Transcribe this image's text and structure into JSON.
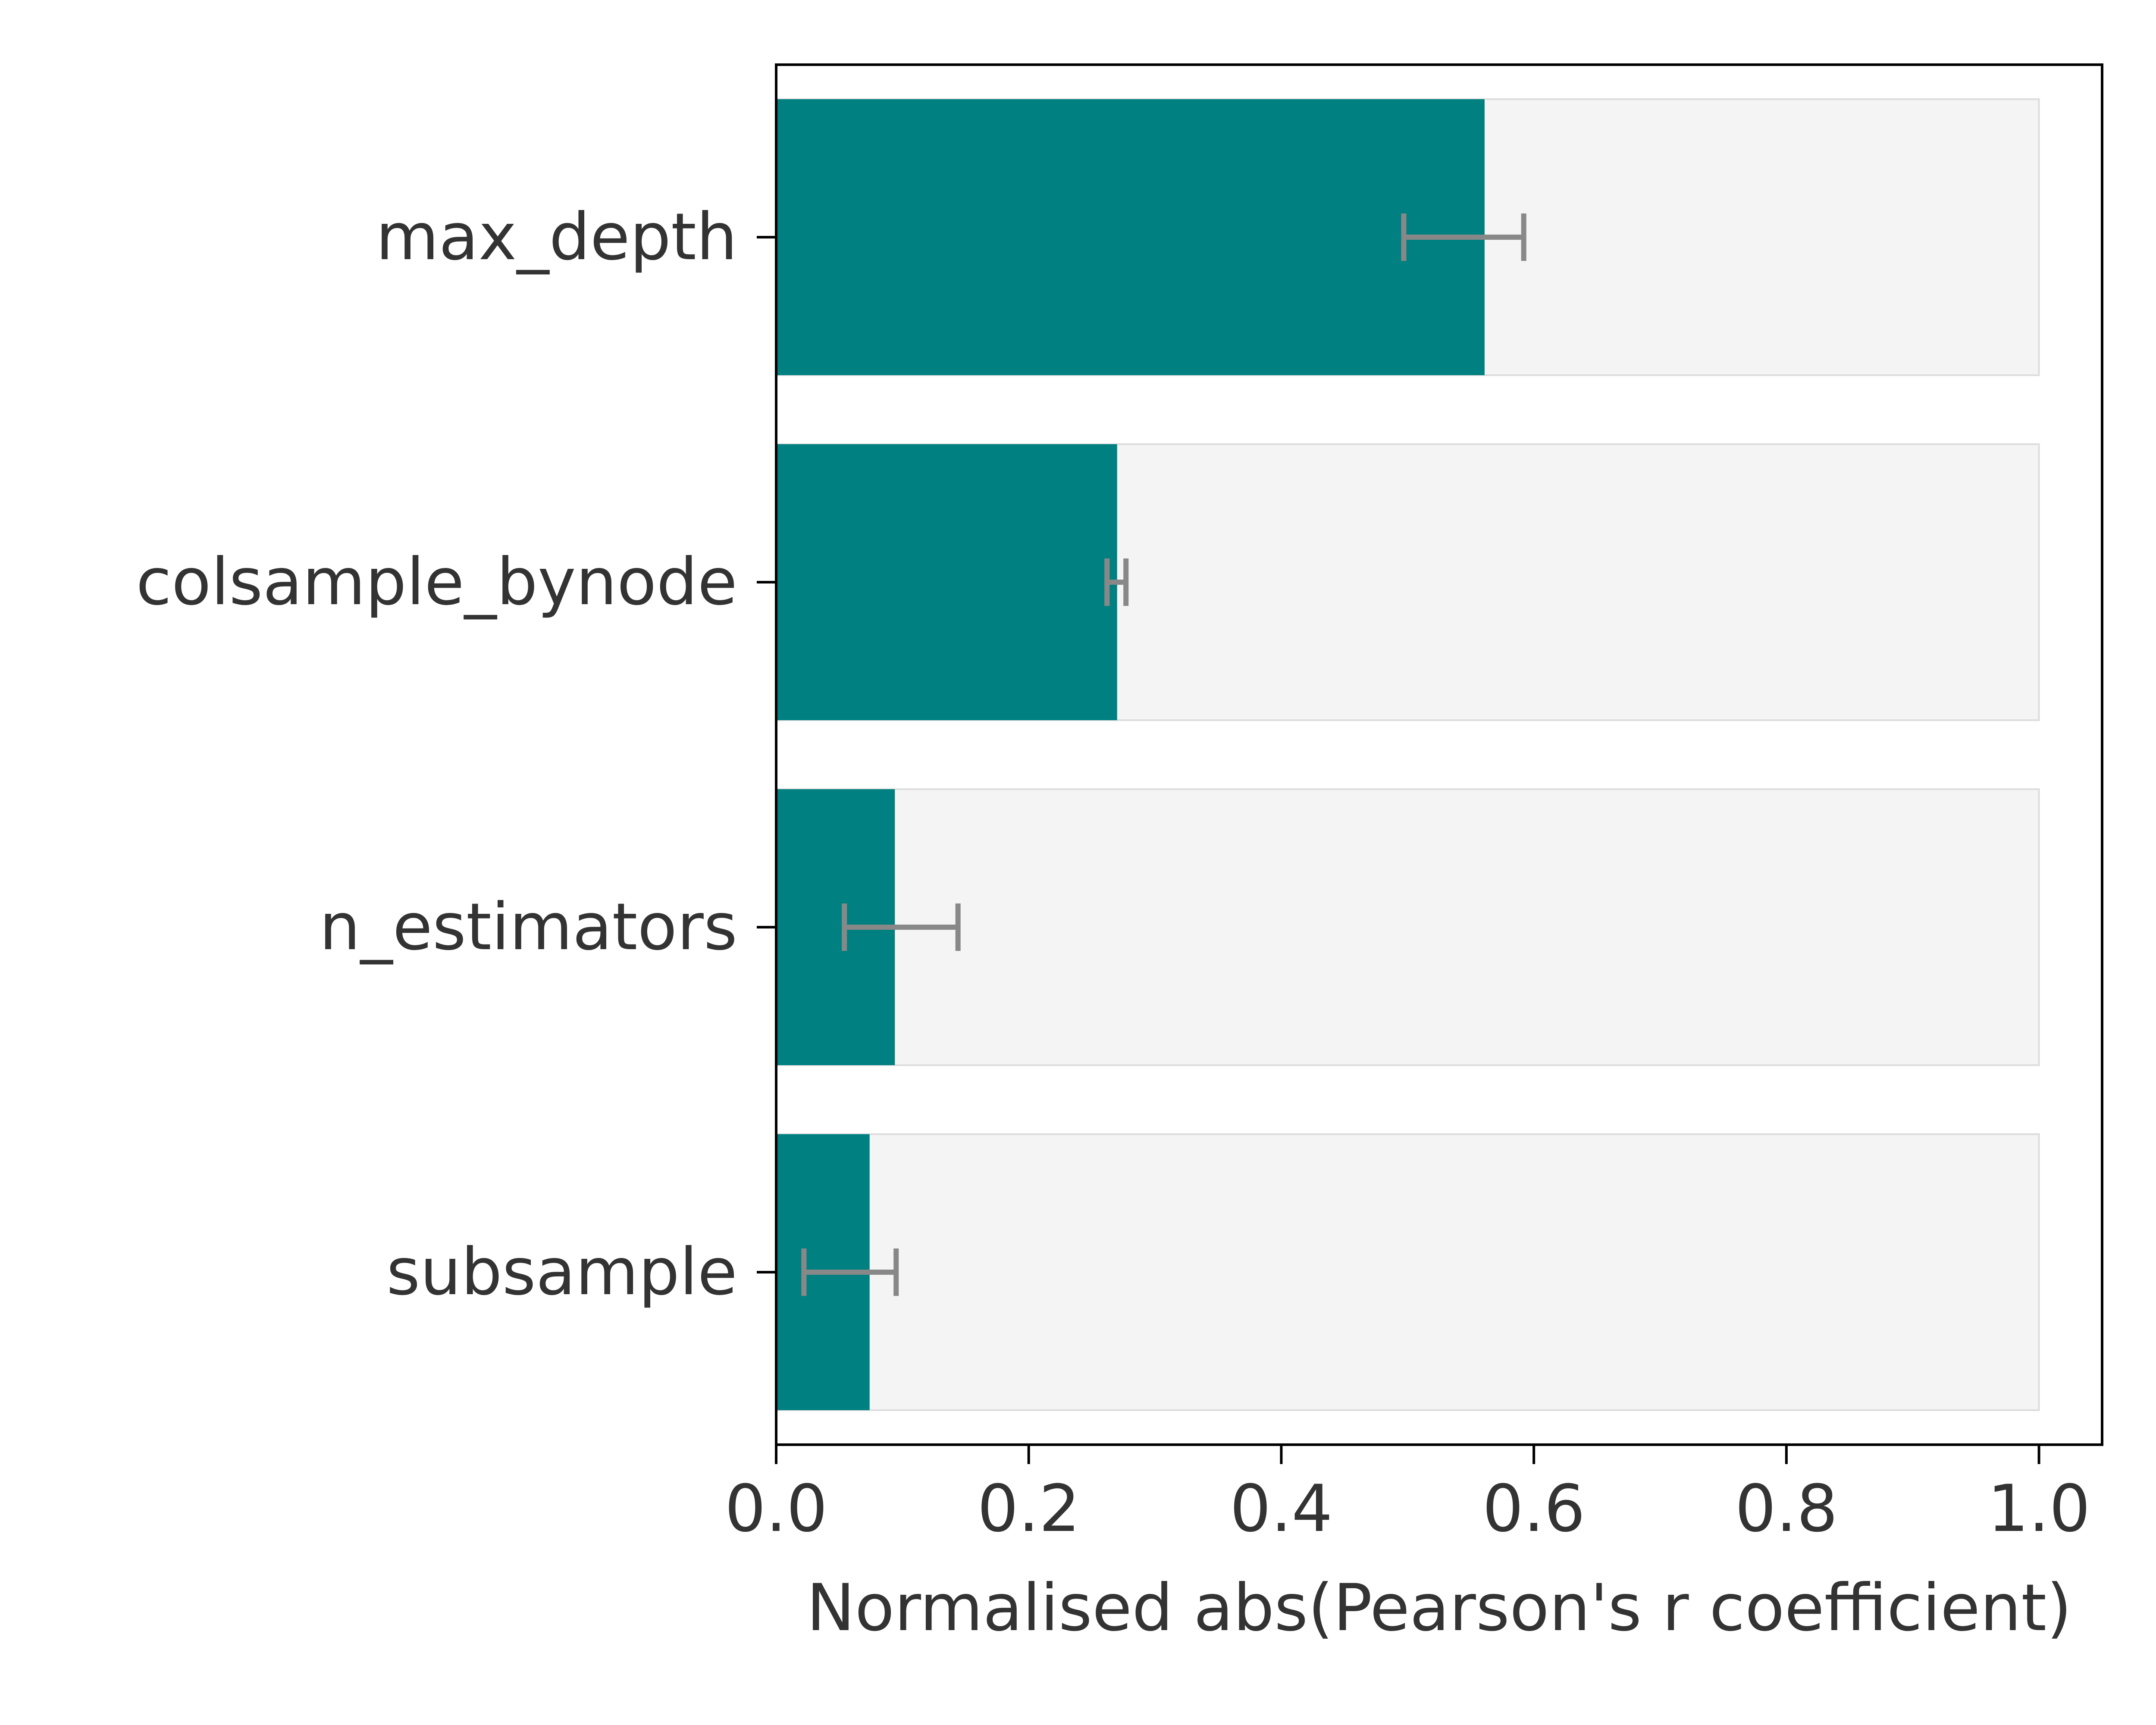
{
  "chart_data": {
    "type": "bar",
    "orientation": "horizontal",
    "categories": [
      "max_depth",
      "colsample_bynode",
      "n_estimators",
      "subsample"
    ],
    "values": [
      0.561,
      0.27,
      0.094,
      0.074
    ],
    "error_bars": [
      {
        "low": 0.497,
        "high": 0.592
      },
      {
        "low": 0.262,
        "high": 0.277
      },
      {
        "low": 0.054,
        "high": 0.144
      },
      {
        "low": 0.022,
        "high": 0.095
      }
    ],
    "background_bar_value": 1.0,
    "xlabel": "Normalised abs(Pearson's r coefficient)",
    "ylabel": "",
    "title": "",
    "xlim": [
      0.0,
      1.05
    ],
    "x_ticks": [
      "0.0",
      "0.2",
      "0.4",
      "0.6",
      "0.8",
      "1.0"
    ],
    "grid": false,
    "legend": "none",
    "colors": {
      "bar": "#008080",
      "background_bar": "#f4f4f4",
      "background_bar_edge": "#dddddd",
      "error_bar": "#888888",
      "axis": "#000000",
      "text": "#333333"
    }
  }
}
